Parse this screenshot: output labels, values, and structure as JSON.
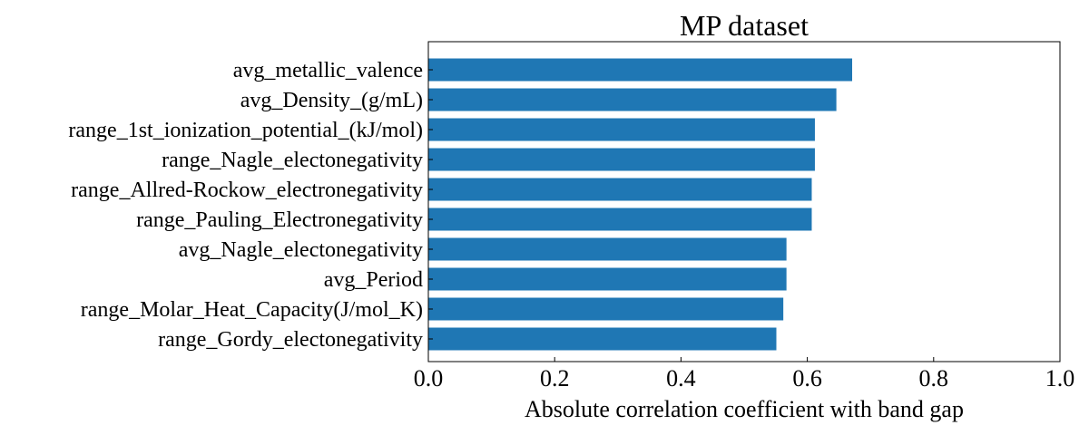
{
  "chart_data": {
    "type": "bar",
    "orientation": "horizontal",
    "title": "MP dataset",
    "xlabel": "Absolute correlation coefficient with band gap",
    "ylabel": "",
    "xlim": [
      0.0,
      1.0
    ],
    "xticks": [
      "0.0",
      "0.2",
      "0.4",
      "0.6",
      "0.8",
      "1.0"
    ],
    "grid": false,
    "bar_color": "#1f77b4",
    "categories": [
      "avg_metallic_valence",
      "avg_Density_(g/mL)",
      "range_1st_ionization_potential_(kJ/mol)",
      "range_Nagle_electonegativity",
      "range_Allred-Rockow_electronegativity",
      "range_Pauling_Electronegativity",
      "avg_Nagle_electonegativity",
      "avg_Period",
      "range_Molar_Heat_Capacity(J/mol_K)",
      "range_Gordy_electonegativity"
    ],
    "values": [
      0.671,
      0.646,
      0.612,
      0.612,
      0.607,
      0.607,
      0.567,
      0.567,
      0.562,
      0.551
    ]
  }
}
